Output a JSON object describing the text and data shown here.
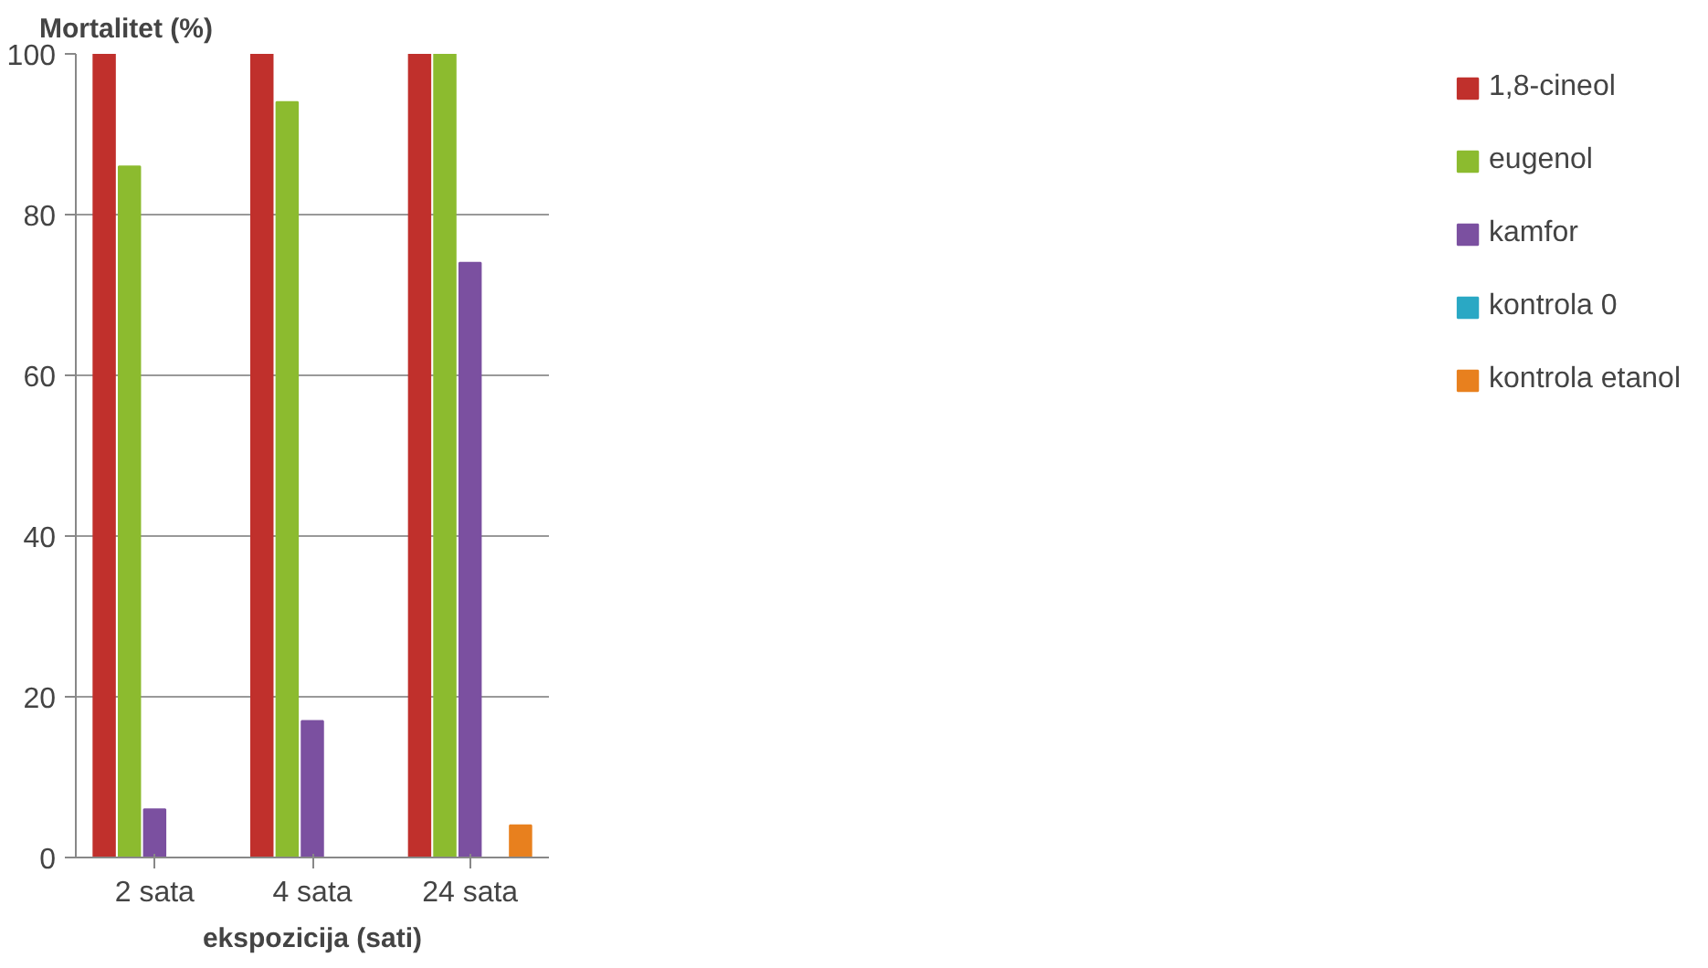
{
  "chart_data": {
    "type": "bar",
    "ylabel": "Mortalitet (%)",
    "xlabel": "ekspozicija (sati)",
    "categories": [
      "2 sata",
      "4 sata",
      "24 sata"
    ],
    "series": [
      {
        "name": "1,8-cineol",
        "color": "#c0302c",
        "values": [
          100,
          100,
          100
        ]
      },
      {
        "name": "eugenol",
        "color": "#8cbb2f",
        "values": [
          86,
          94,
          100
        ]
      },
      {
        "name": "kamfor",
        "color": "#7b50a0",
        "values": [
          6,
          17,
          74
        ]
      },
      {
        "name": "kontrola 0",
        "color": "#2aa8c4",
        "values": [
          0,
          0,
          0
        ]
      },
      {
        "name": "kontrola etanol",
        "color": "#e8801e",
        "values": [
          0,
          0,
          4
        ]
      }
    ],
    "ylim": [
      0,
      100
    ],
    "yticks": [
      0,
      20,
      40,
      60,
      80,
      100
    ],
    "grid": "y",
    "legend": "right"
  }
}
